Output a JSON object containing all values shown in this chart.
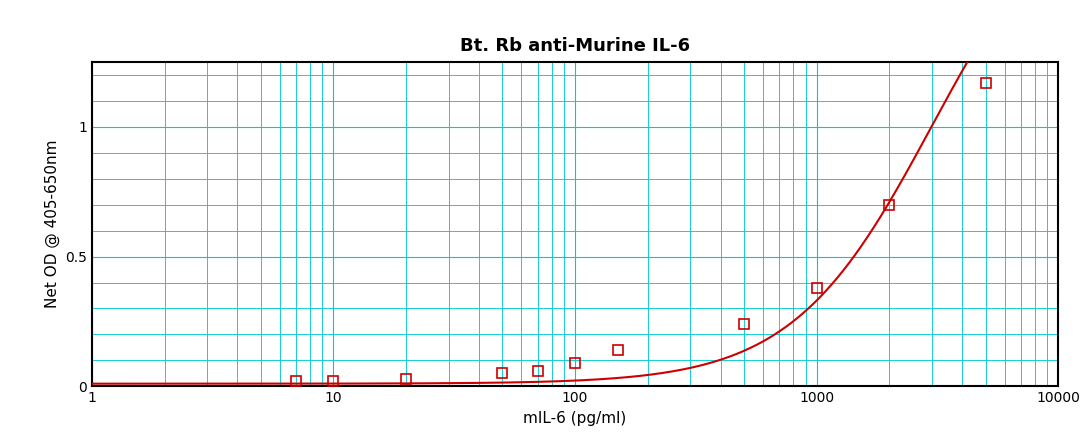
{
  "title": "Bt. Rb anti-Murine IL-6",
  "xlabel": "mIL-6 (pg/ml)",
  "ylabel": "Net OD @ 405-650nm",
  "data_points_x": [
    7,
    10,
    20,
    50,
    70,
    100,
    150,
    500,
    1000,
    2000,
    5000
  ],
  "data_points_y": [
    0.02,
    0.02,
    0.03,
    0.05,
    0.06,
    0.09,
    0.14,
    0.24,
    0.38,
    0.7,
    1.17
  ],
  "xmin": 1,
  "xmax": 10000,
  "ymin": 0,
  "ymax": 1.25,
  "line_color": "#cc0000",
  "marker_color": "#cc0000",
  "marker_facecolor": "none",
  "marker_size": 7,
  "marker_linewidth": 1.2,
  "line_width": 1.5,
  "grid_major_color": "#00cccc",
  "grid_minor_color": "#00cccc",
  "grid_linewidth": 0.8,
  "background_color": "#ffffff",
  "title_fontsize": 13,
  "label_fontsize": 11,
  "tick_fontsize": 10,
  "yticks": [
    0,
    0.5,
    1.0
  ],
  "ytick_labels": [
    "0",
    "0.5",
    "1"
  ],
  "major_xticks": [
    1,
    10,
    100,
    1000,
    10000
  ],
  "major_xtick_labels": [
    "1",
    "10",
    "100",
    "1000",
    "10000"
  ]
}
